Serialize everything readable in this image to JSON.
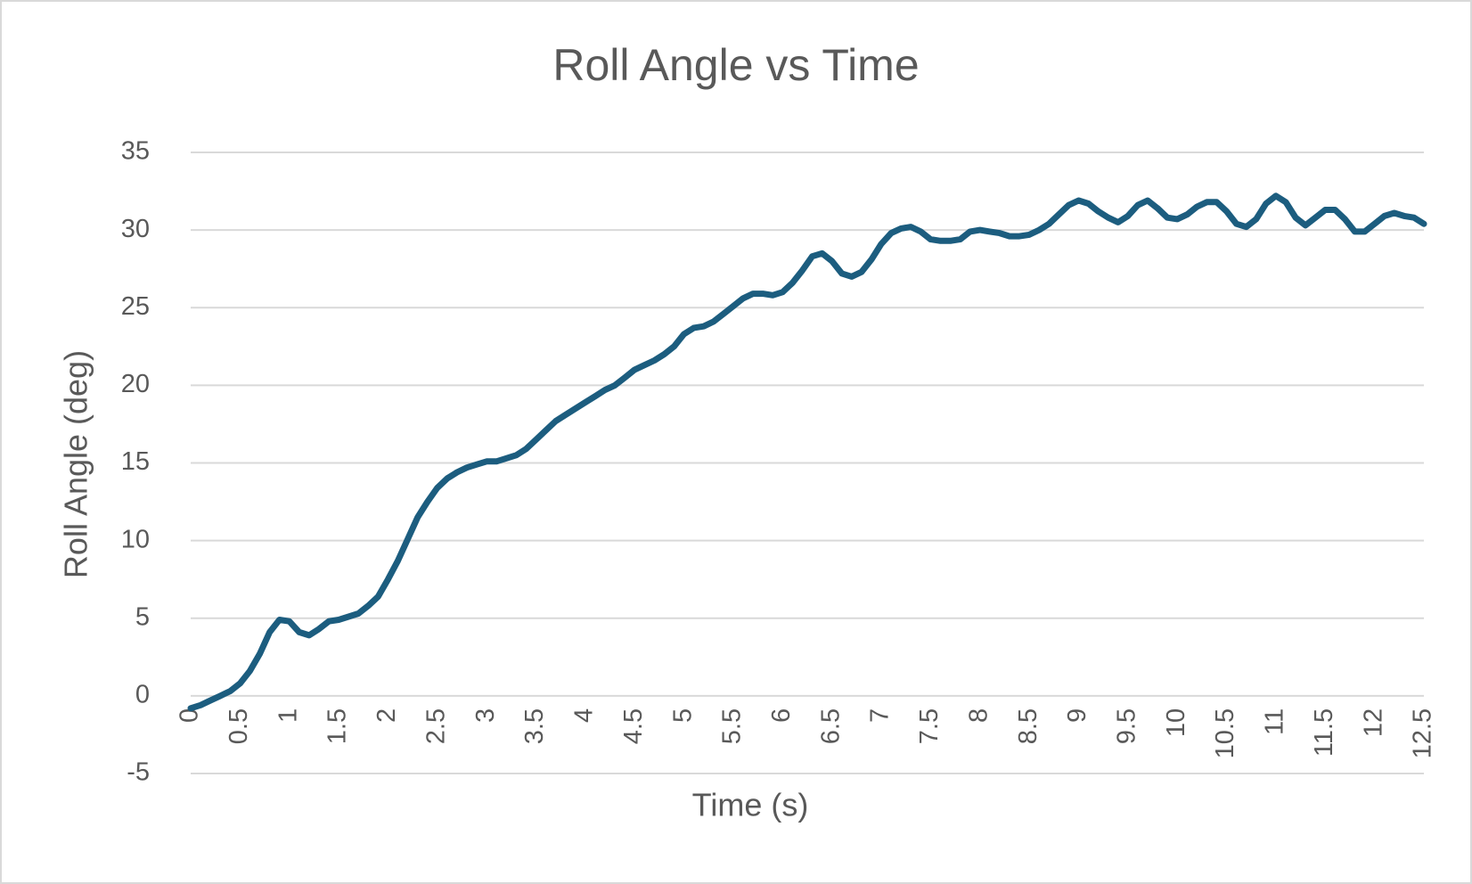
{
  "chart_data": {
    "type": "line",
    "title": "Roll Angle vs Time",
    "x_label": "Time (s)",
    "y_label": "Roll Angle (deg)",
    "color": "#1c5d7f",
    "x": [
      0,
      0.1,
      0.2,
      0.3,
      0.4,
      0.5,
      0.6,
      0.7,
      0.8,
      0.9,
      1,
      1.1,
      1.2,
      1.3,
      1.4,
      1.5,
      1.6,
      1.7,
      1.8,
      1.9,
      2,
      2.1,
      2.2,
      2.3,
      2.4,
      2.5,
      2.6,
      2.7,
      2.8,
      2.9,
      3,
      3.1,
      3.2,
      3.3,
      3.4,
      3.5,
      3.6,
      3.7,
      3.8,
      3.9,
      4,
      4.1,
      4.2,
      4.3,
      4.4,
      4.5,
      4.6,
      4.7,
      4.8,
      4.9,
      5,
      5.1,
      5.2,
      5.3,
      5.4,
      5.5,
      5.6,
      5.7,
      5.8,
      5.9,
      6,
      6.1,
      6.2,
      6.3,
      6.4,
      6.5,
      6.6,
      6.7,
      6.8,
      6.9,
      7,
      7.1,
      7.2,
      7.3,
      7.4,
      7.5,
      7.6,
      7.7,
      7.8,
      7.9,
      8,
      8.1,
      8.2,
      8.3,
      8.4,
      8.5,
      8.6,
      8.7,
      8.8,
      8.9,
      9,
      9.1,
      9.2,
      9.3,
      9.4,
      9.5,
      9.6,
      9.7,
      9.8,
      9.9,
      10,
      10.1,
      10.2,
      10.3,
      10.4,
      10.5,
      10.6,
      10.7,
      10.8,
      10.9,
      11,
      11.1,
      11.2,
      11.3,
      11.4,
      11.5,
      11.6,
      11.7,
      11.8,
      11.9,
      12,
      12.1,
      12.2,
      12.3,
      12.4,
      12.5
    ],
    "values": [
      -0.8,
      -0.6,
      -0.3,
      0,
      0.3,
      0.8,
      1.6,
      2.7,
      4.1,
      4.9,
      4.8,
      4.1,
      3.9,
      4.3,
      4.8,
      4.9,
      5.1,
      5.3,
      5.8,
      6.4,
      7.5,
      8.7,
      10.1,
      11.5,
      12.5,
      13.4,
      14.0,
      14.4,
      14.7,
      14.9,
      15.1,
      15.1,
      15.3,
      15.5,
      15.9,
      16.5,
      17.1,
      17.7,
      18.1,
      18.5,
      18.9,
      19.3,
      19.7,
      20.0,
      20.5,
      21.0,
      21.3,
      21.6,
      22.0,
      22.5,
      23.3,
      23.7,
      23.8,
      24.1,
      24.6,
      25.1,
      25.6,
      25.9,
      25.9,
      25.8,
      26.0,
      26.6,
      27.4,
      28.3,
      28.5,
      28.0,
      27.2,
      27.0,
      27.3,
      28.1,
      29.1,
      29.8,
      30.1,
      30.2,
      29.9,
      29.4,
      29.3,
      29.3,
      29.4,
      29.9,
      30.0,
      29.9,
      29.8,
      29.6,
      29.6,
      29.7,
      30.0,
      30.4,
      31.0,
      31.6,
      31.9,
      31.7,
      31.2,
      30.8,
      30.5,
      30.9,
      31.6,
      31.9,
      31.4,
      30.8,
      30.7,
      31.0,
      31.5,
      31.8,
      31.8,
      31.2,
      30.4,
      30.2,
      30.7,
      31.7,
      32.2,
      31.8,
      30.8,
      30.3,
      30.8,
      31.3,
      31.3,
      30.7,
      29.9,
      29.9,
      30.4,
      30.9,
      31.1,
      30.9,
      30.8,
      30.4
    ],
    "xlim": [
      0,
      12.5
    ],
    "xticks": [
      0,
      0.5,
      1,
      1.5,
      2,
      2.5,
      3,
      3.5,
      4,
      4.5,
      5,
      5.5,
      6,
      6.5,
      7,
      7.5,
      8,
      8.5,
      9,
      9.5,
      10,
      10.5,
      11,
      11.5,
      12,
      12.5
    ],
    "ylim": [
      -5,
      35
    ],
    "yticks": [
      -5,
      0,
      5,
      10,
      15,
      20,
      25,
      30,
      35
    ],
    "grid": true
  }
}
